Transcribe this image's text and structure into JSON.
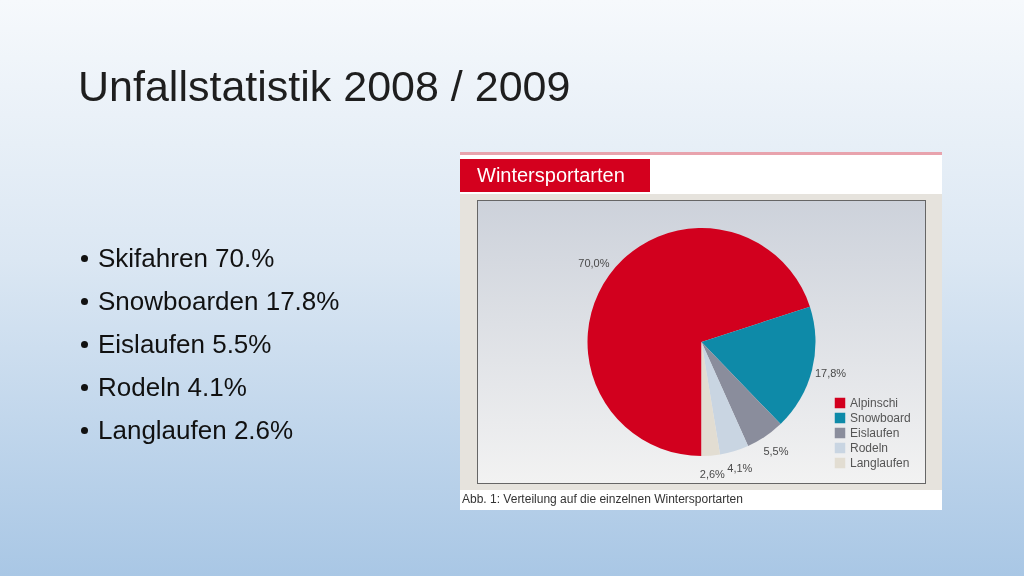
{
  "chart_data": {
    "type": "pie",
    "title": "Unfallstatistik 2008 / 2009",
    "subtitle": "Wintersportarten",
    "categories": [
      "Alpinschi",
      "Snowboard",
      "Eislaufen",
      "Rodeln",
      "Langlaufen"
    ],
    "values": [
      70.0,
      17.8,
      5.5,
      4.1,
      2.6
    ],
    "colors": [
      "#d2001e",
      "#0e8aa8",
      "#8a8d9c",
      "#c9d5e2",
      "#e2ddd2"
    ],
    "value_labels": [
      "70,0%",
      "17,8%",
      "5,5%",
      "4,1%",
      "2,6%"
    ],
    "legend": "bottom right",
    "annotations": [
      "Skifahren 70.%",
      "Snowboarden 17.8%",
      "Eislaufen 5.5%",
      "Rodeln 4.1%",
      "Langlaufen 2.6%",
      "Abb. 1: Verteilung auf die einzelnen Wintersportarten"
    ]
  }
}
